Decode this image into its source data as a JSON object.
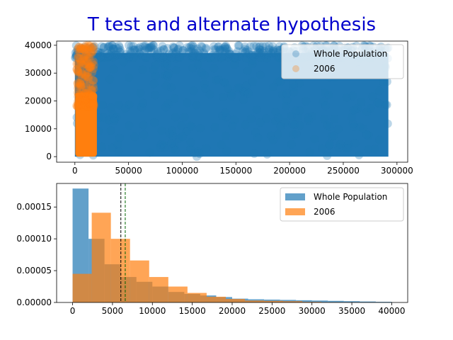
{
  "title": "T test and alternate hypothesis",
  "title_color": "#0000cc",
  "chart_data": [
    {
      "type": "scatter",
      "title": "",
      "xlabel": "",
      "ylabel": "",
      "xlim": [
        -17000,
        310000
      ],
      "ylim": [
        -2000,
        41500
      ],
      "xticks": [
        0,
        50000,
        100000,
        150000,
        200000,
        250000,
        300000
      ],
      "xtick_labels": [
        "0",
        "50000",
        "100000",
        "150000",
        "200000",
        "250000",
        "300000"
      ],
      "yticks": [
        0,
        10000,
        20000,
        30000,
        40000
      ],
      "ytick_labels": [
        "0",
        "10000",
        "20000",
        "30000",
        "40000"
      ],
      "legend_position": "top-right",
      "series": [
        {
          "name": "Whole Population",
          "color": "#1f77b4",
          "x_range": [
            0,
            292000
          ],
          "y_range": [
            0,
            40000
          ]
        },
        {
          "name": "2006",
          "color": "#ff7f0e",
          "x_range": [
            0,
            20500
          ],
          "y_range": [
            0,
            40000
          ]
        }
      ]
    },
    {
      "type": "histogram",
      "title": "",
      "xlabel": "",
      "ylabel": "",
      "xlim": [
        -2000,
        42000
      ],
      "ylim": [
        0,
        0.000187
      ],
      "xticks": [
        0,
        5000,
        10000,
        15000,
        20000,
        25000,
        30000,
        35000,
        40000
      ],
      "xtick_labels": [
        "0",
        "5000",
        "10000",
        "15000",
        "20000",
        "25000",
        "30000",
        "35000",
        "40000"
      ],
      "yticks": [
        0,
        5e-05,
        0.0001,
        0.00015
      ],
      "ytick_labels": [
        "0.00000",
        "0.00005",
        "0.00010",
        "0.00015"
      ],
      "legend_position": "top-right",
      "series": [
        {
          "name": "Whole Population",
          "color": "#1f77b4",
          "bin_edges": [
            0,
            2000,
            4000,
            6000,
            8000,
            10000,
            12000,
            14000,
            16000,
            18000,
            20000,
            22000,
            24000,
            26000,
            28000,
            30000,
            32000,
            34000,
            36000,
            38000,
            40000
          ],
          "values": [
            0.000179,
            0.0001,
            6e-05,
            4e-05,
            3.25e-05,
            2.5e-05,
            1.65e-05,
            1.35e-05,
            1.1e-05,
            8.5e-06,
            6e-06,
            5e-06,
            4.5e-06,
            4e-06,
            3.5e-06,
            3e-06,
            2.5e-06,
            2e-06,
            1.5e-06,
            1e-06
          ]
        },
        {
          "name": "2006",
          "color": "#ff7f0e",
          "bin_edges": [
            0,
            2400,
            4800,
            7200,
            9600,
            12000,
            14400,
            16800,
            19200,
            21600,
            24000,
            26400,
            28800,
            31200,
            33600,
            36000,
            38400
          ],
          "values": [
            4.5e-05,
            0.000141,
            0.0001,
            6.6e-05,
            4e-05,
            2.5e-05,
            1.5e-05,
            9e-06,
            5.5e-06,
            3e-06,
            2.5e-06,
            2e-06,
            1e-06,
            5e-07,
            3e-07,
            2e-07
          ]
        }
      ],
      "vlines": [
        {
          "x": 6050,
          "color": "#000000",
          "style": "dashed"
        },
        {
          "x": 6600,
          "color": "#006400",
          "style": "dashed"
        }
      ]
    }
  ]
}
